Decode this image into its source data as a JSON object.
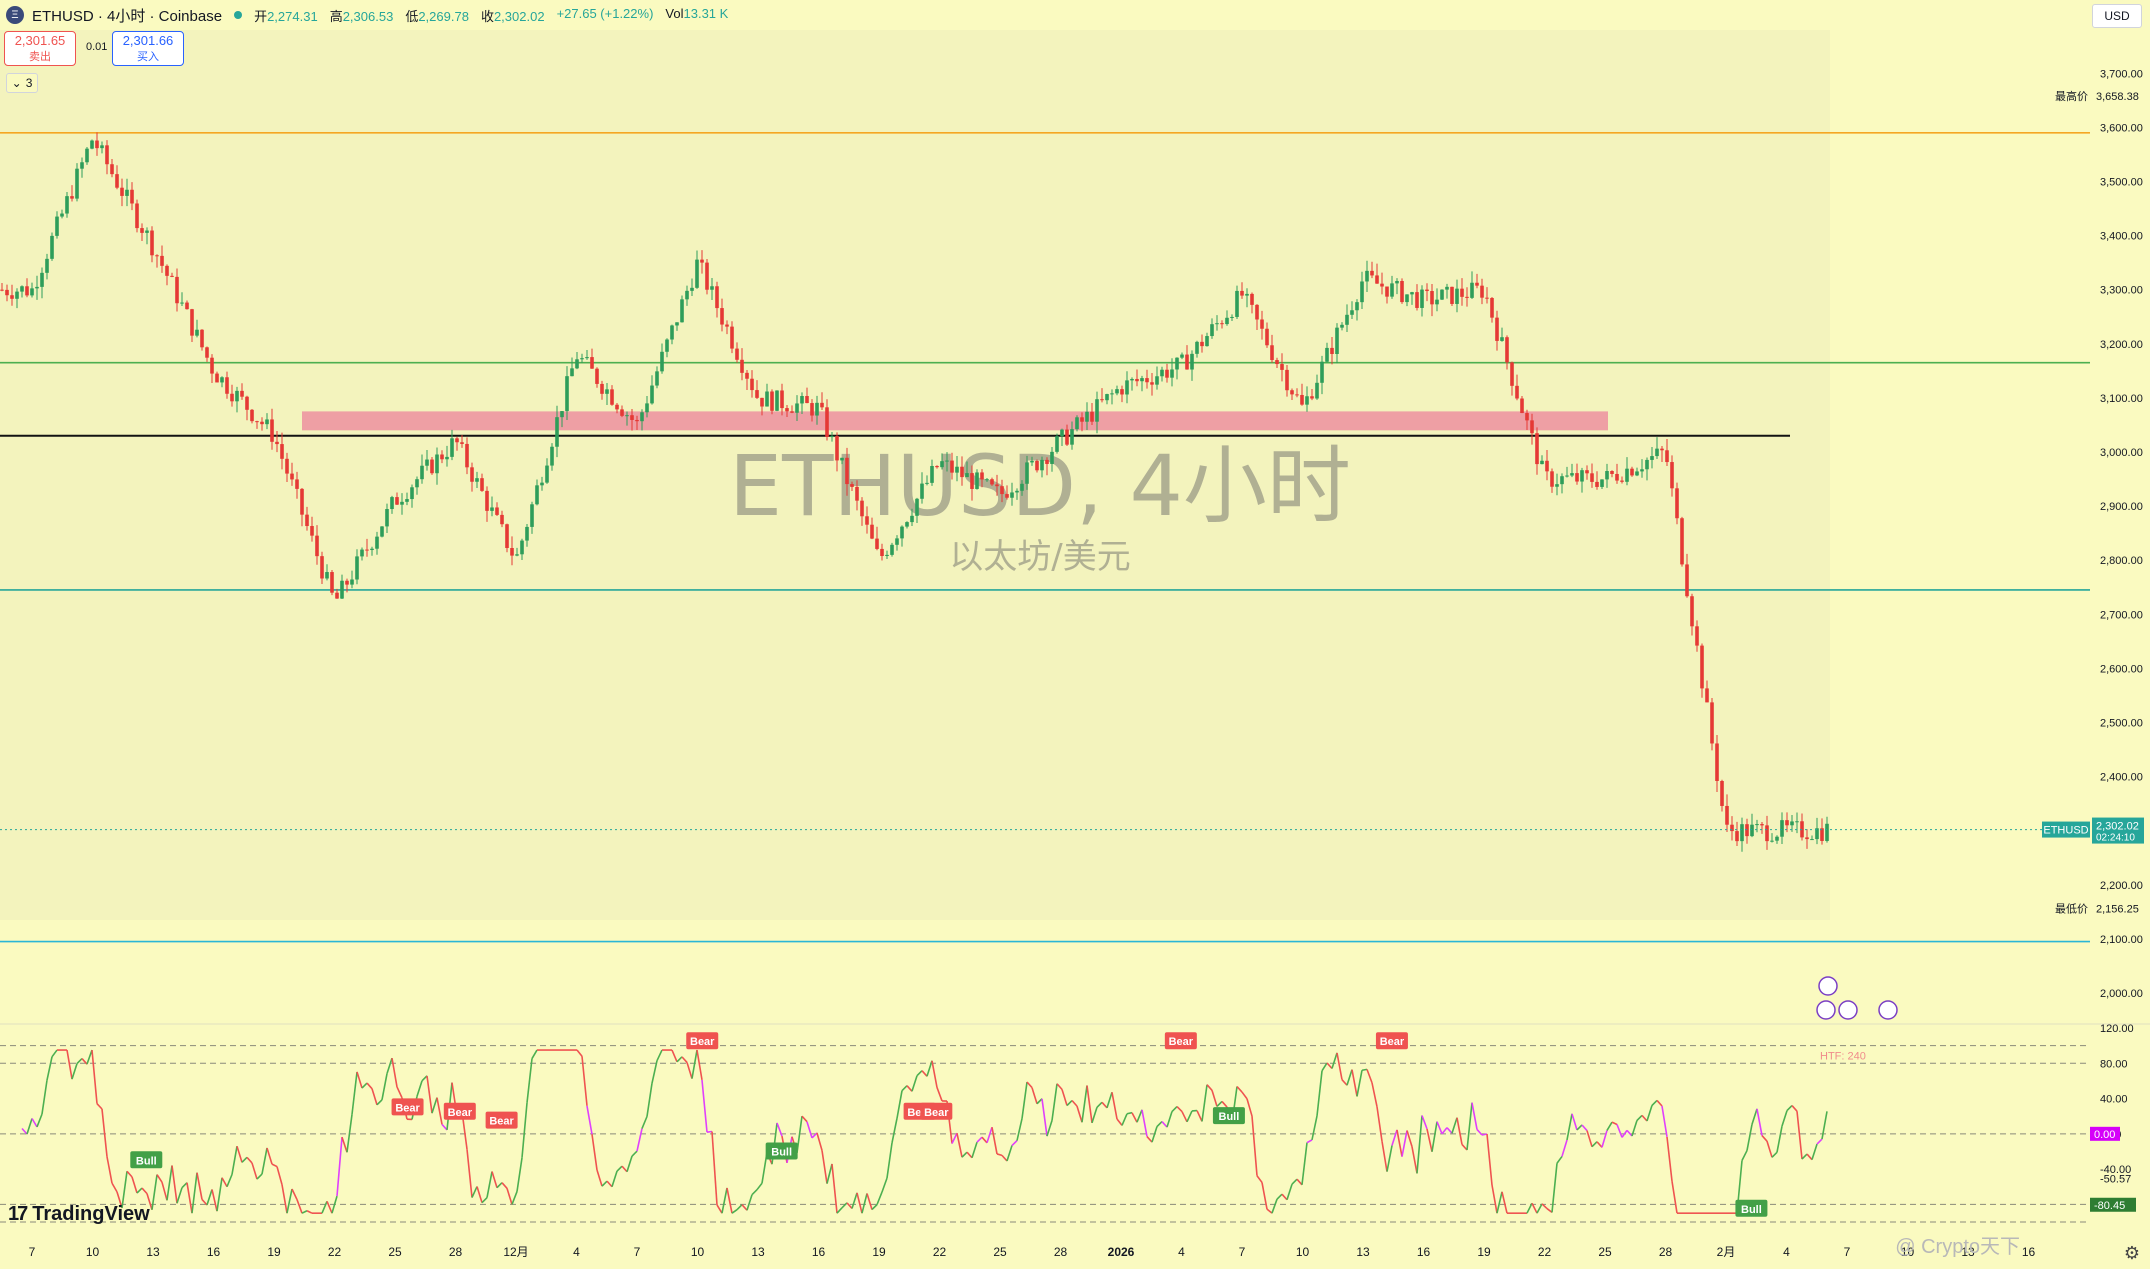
{
  "header": {
    "symbol": "ETHUSD · 4小时 · Coinbase",
    "logo_glyph": "Ξ",
    "ohlc": [
      {
        "label": "开",
        "value": "2,274.31"
      },
      {
        "label": "高",
        "value": "2,306.53"
      },
      {
        "label": "低",
        "value": "2,269.78"
      },
      {
        "label": "收",
        "value": "2,302.02"
      },
      {
        "label": "",
        "value": "+27.65 (+1.22%)"
      },
      {
        "label": "Vol",
        "value": "13.31 K"
      }
    ]
  },
  "trade": {
    "sell_price": "2,301.65",
    "sell_label": "卖出",
    "spread": "0.01",
    "buy_price": "2,301.66",
    "buy_label": "买入"
  },
  "collapse_label": "3",
  "currency": "USD",
  "watermark": {
    "title": "ETHUSD, 4小时",
    "subtitle": "以太坊/美元"
  },
  "brand": "TradingView",
  "credit": "@ Crypto天下",
  "colors": {
    "background": "#fafac0",
    "up": "#2e9d5a",
    "down": "#e53935",
    "orange_line": "#f5a623",
    "green_line": "#4caf50",
    "black_line": "#111111",
    "teal_line": "#26a69a",
    "cyan_line": "#29b6d6",
    "resistance_zone": "#ec8fa0"
  },
  "chart_data": [
    {
      "type": "candlestick",
      "title": "ETHUSD, 4小时",
      "subtitle": "以太坊/美元",
      "ylim": [
        1950,
        3780
      ],
      "y_ticks": [
        3700,
        3600,
        3500,
        3400,
        3300,
        3200,
        3100,
        3000,
        2900,
        2800,
        2700,
        2600,
        2500,
        2400,
        2300,
        2200,
        2100,
        2000
      ],
      "y_tick_labels": [
        "3,700.00",
        "3,600.00",
        "3,500.00",
        "3,400.00",
        "3,300.00",
        "3,200.00",
        "3,100.00",
        "3,000.00",
        "2,900.00",
        "2,800.00",
        "2,700.00",
        "2,600.00",
        "2,500.00",
        "2,400.00",
        "2,300.00",
        "2,200.00",
        "2,100.00",
        "2,000.00"
      ],
      "x_tick_labels": [
        "7",
        "10",
        "13",
        "16",
        "19",
        "22",
        "25",
        "28",
        "12月",
        "4",
        "7",
        "10",
        "13",
        "16",
        "19",
        "22",
        "25",
        "28",
        "2026",
        "4",
        "7",
        "10",
        "13",
        "16",
        "19",
        "22",
        "25",
        "28",
        "2月",
        "4",
        "7",
        "10",
        "13",
        "16"
      ],
      "key_closes": [
        {
          "x": "7",
          "c": 3300
        },
        {
          "x": "10",
          "c": 3580
        },
        {
          "x": "13",
          "c": 3380
        },
        {
          "x": "16",
          "c": 3150
        },
        {
          "x": "19",
          "c": 3030
        },
        {
          "x": "22",
          "c": 2720
        },
        {
          "x": "25",
          "c": 2910
        },
        {
          "x": "28",
          "c": 3020
        },
        {
          "x": "12月",
          "c": 2800
        },
        {
          "x": "4",
          "c": 3180
        },
        {
          "x": "7",
          "c": 3050
        },
        {
          "x": "10",
          "c": 3350
        },
        {
          "x": "13",
          "c": 3100
        },
        {
          "x": "16",
          "c": 3080
        },
        {
          "x": "19",
          "c": 2800
        },
        {
          "x": "22",
          "c": 2980
        },
        {
          "x": "25",
          "c": 2920
        },
        {
          "x": "28",
          "c": 3020
        },
        {
          "x": "2026",
          "c": 3120
        },
        {
          "x": "4",
          "c": 3160
        },
        {
          "x": "7",
          "c": 3290
        },
        {
          "x": "10",
          "c": 3080
        },
        {
          "x": "13",
          "c": 3320
        },
        {
          "x": "16",
          "c": 3280
        },
        {
          "x": "19",
          "c": 3300
        },
        {
          "x": "22",
          "c": 2950
        },
        {
          "x": "25",
          "c": 2950
        },
        {
          "x": "28",
          "c": 3000
        },
        {
          "x": "2月",
          "c": 2300
        }
      ],
      "horizontal_lines": [
        {
          "price": 3590,
          "color": "orange"
        },
        {
          "price": 3165,
          "color": "green"
        },
        {
          "price": 3030,
          "color": "black"
        },
        {
          "price": 2745,
          "color": "teal"
        },
        {
          "price": 2095,
          "color": "cyan"
        }
      ],
      "zone": {
        "from": 3040,
        "to": 3075
      },
      "labels": {
        "high": "最高价",
        "high_value": "3,658.38",
        "low": "最低价",
        "low_value": "2,156.25",
        "symbol_tag": "ETHUSD",
        "last_price": "2,302.02",
        "countdown": "02:24:10"
      },
      "last_price": 2302.02
    },
    {
      "type": "line",
      "name": "oscillator",
      "ylim": [
        -100,
        120
      ],
      "y_tick_labels": [
        "120.00",
        "80.00",
        "40.00",
        "0.00",
        "-40.00",
        "-50.57",
        "-80.45"
      ],
      "y_ticks": [
        120,
        80,
        40,
        0,
        -40
      ],
      "levels": [
        100,
        80,
        0,
        -80,
        -100
      ],
      "htf_label": "HTF: 240",
      "current_value": "0.00",
      "markers": [
        {
          "text": "Bull",
          "x": 0.07,
          "v": -30,
          "type": "bull"
        },
        {
          "text": "Bear",
          "x": 0.195,
          "v": 30,
          "type": "bear"
        },
        {
          "text": "Bear",
          "x": 0.22,
          "v": 25,
          "type": "bear"
        },
        {
          "text": "Bear",
          "x": 0.24,
          "v": 15,
          "type": "bear"
        },
        {
          "text": "Bear",
          "x": 0.336,
          "v": 105,
          "type": "bear"
        },
        {
          "text": "Bull",
          "x": 0.374,
          "v": -20,
          "type": "bull"
        },
        {
          "text": "Bear",
          "x": 0.44,
          "v": 25,
          "type": "bear"
        },
        {
          "text": "Bear",
          "x": 0.448,
          "v": 25,
          "type": "bear"
        },
        {
          "text": "Bear",
          "x": 0.565,
          "v": 105,
          "type": "bear"
        },
        {
          "text": "Bull",
          "x": 0.588,
          "v": 20,
          "type": "bull"
        },
        {
          "text": "Bear",
          "x": 0.666,
          "v": 105,
          "type": "bear"
        },
        {
          "text": "Bull",
          "x": 0.838,
          "v": -85,
          "type": "bull"
        }
      ]
    }
  ]
}
